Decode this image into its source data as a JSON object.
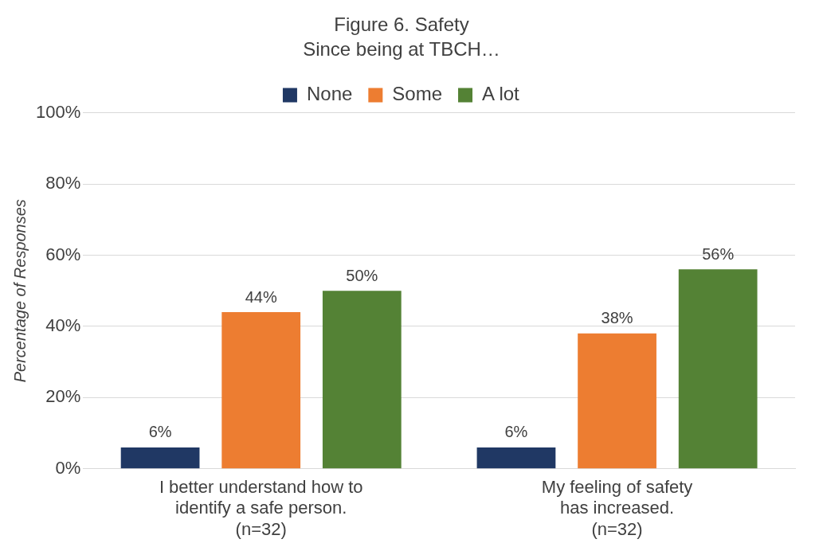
{
  "chart_data": {
    "type": "bar",
    "title": "Figure 6. Safety",
    "subtitle": "Since being at TBCH…",
    "ylabel": "Percentage of Responses",
    "categories": [
      "I better understand how to\nidentify a safe person.\n(n=32)",
      "My feeling of safety\nhas increased.\n(n=32)"
    ],
    "series": [
      {
        "name": "None",
        "color": "#203864",
        "values": [
          6,
          6
        ],
        "value_labels": [
          "6%",
          "6%"
        ]
      },
      {
        "name": "Some",
        "color": "#ed7d31",
        "values": [
          44,
          38
        ],
        "value_labels": [
          "44%",
          "38%"
        ]
      },
      {
        "name": "A lot",
        "color": "#548235",
        "values": [
          50,
          56
        ],
        "value_labels": [
          "50%",
          "56%"
        ]
      }
    ],
    "ylim": [
      0,
      100
    ],
    "yticks": [
      {
        "value": 0,
        "label": "0%"
      },
      {
        "value": 20,
        "label": "20%"
      },
      {
        "value": 40,
        "label": "40%"
      },
      {
        "value": 60,
        "label": "60%"
      },
      {
        "value": 80,
        "label": "80%"
      },
      {
        "value": 100,
        "label": "100%"
      }
    ],
    "grid": "y",
    "legend": "top"
  }
}
